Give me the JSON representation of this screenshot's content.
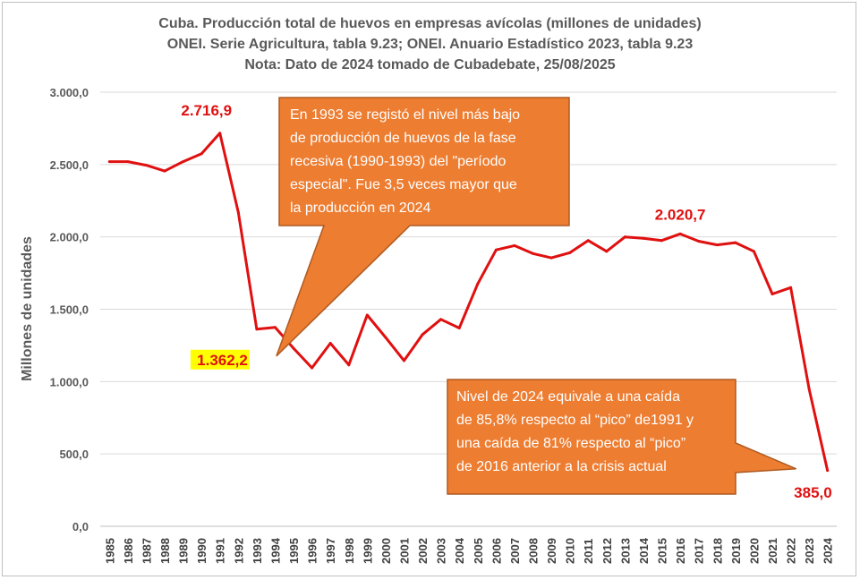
{
  "chart_data": {
    "type": "line",
    "title_lines": [
      "Cuba. Producción total de huevos en empresas avícolas (millones de unidades)",
      "ONEI. Serie Agricultura, tabla 9.23; ONEI. Anuario Estadístico 2023, tabla 9.23",
      "Nota: Dato de 2024 tomado de Cubadebate, 25/08/2025"
    ],
    "ylabel": "Millones de unidades",
    "xlabel": "",
    "ylim": [
      0,
      3000
    ],
    "y_ticks": [
      "0,0",
      "500,0",
      "1.000,0",
      "1.500,0",
      "2.000,0",
      "2.500,0",
      "3.000,0"
    ],
    "grid": "horizontal",
    "categories": [
      "1985",
      "1986",
      "1987",
      "1988",
      "1989",
      "1990",
      "1991",
      "1992",
      "1993",
      "1994",
      "1995",
      "1996",
      "1997",
      "1998",
      "1999",
      "2000",
      "2001",
      "2002",
      "2003",
      "2004",
      "2005",
      "2006",
      "2007",
      "2008",
      "2009",
      "2010",
      "2011",
      "2012",
      "2013",
      "2014",
      "2015",
      "2016",
      "2017",
      "2018",
      "2019",
      "2020",
      "2021",
      "2022",
      "2023",
      "2024"
    ],
    "series": [
      {
        "color": "#e01010",
        "values": [
          2520,
          2520,
          2495,
          2455,
          2520,
          2575,
          2716.9,
          2170,
          1362.2,
          1375,
          1230,
          1095,
          1265,
          1115,
          1460,
          1305,
          1145,
          1325,
          1430,
          1370,
          1675,
          1910,
          1940,
          1885,
          1855,
          1890,
          1975,
          1900,
          2000,
          1990,
          1975,
          2020.7,
          1970,
          1945,
          1960,
          1900,
          1605,
          1650,
          950,
          385
        ]
      }
    ],
    "data_labels": [
      {
        "text": "2.716,9",
        "year": "1991"
      },
      {
        "text": "1.362,2",
        "year": "1993",
        "highlight": "#ffff00"
      },
      {
        "text": "2.020,7",
        "year": "2016"
      },
      {
        "text": "385,0",
        "year": "2024"
      }
    ],
    "annotations": [
      {
        "lines": [
          "En 1993 se registó el nivel más bajo",
          "de producción de huevos de la  fase",
          "recesiva (1990-1993) del \"período",
          "especial\". Fue  3,5 veces mayor que",
          "la producción en 2024"
        ],
        "points_to": "1993"
      },
      {
        "lines": [
          "Nivel de 2024 equivale a una caída",
          "de 85,8% respecto al “pico” de1991 y",
          "una caída de 81% respecto al “pico”",
          "de 2016 anterior a la crisis actual"
        ],
        "points_to": "2024"
      }
    ],
    "colors": {
      "line": "#e01010",
      "label": "#e01010",
      "callout_fill": "#ed7d31",
      "callout_border": "#ae5a21",
      "grid": "#d9d9d9",
      "axis_text": "#595959"
    }
  }
}
